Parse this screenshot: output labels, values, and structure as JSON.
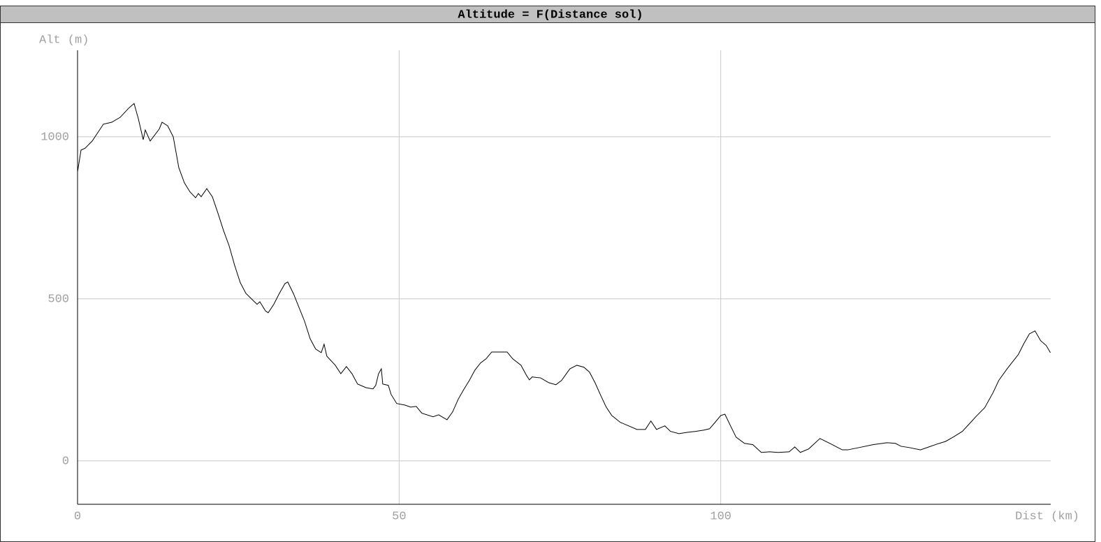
{
  "chart_data": {
    "type": "line",
    "title": "Altitude = F(Distance sol)",
    "y_label": "Alt (m)",
    "x_label": "Dist (km)",
    "xlim": [
      0,
      151.3
    ],
    "xticks": [
      0,
      50,
      100
    ],
    "ylim": [
      -134,
      1267
    ],
    "yticks": [
      0,
      500,
      1000
    ],
    "grid": true,
    "color": "#000000",
    "x": [
      0,
      0.54,
      1.19,
      2.28,
      3.15,
      4.02,
      5.32,
      6.62,
      7.93,
      8.79,
      9.45,
      10.21,
      10.53,
      11.29,
      12.7,
      13.14,
      14.01,
      14.88,
      15.74,
      16.61,
      17.48,
      18.35,
      18.78,
      19.22,
      20.09,
      20.96,
      21.82,
      22.69,
      23.56,
      24.43,
      25.3,
      26.17,
      27.04,
      27.91,
      28.34,
      29.21,
      29.64,
      30.51,
      31.38,
      32.25,
      32.68,
      33.55,
      34.42,
      35.29,
      36.16,
      37.02,
      37.89,
      38.33,
      38.76,
      40.07,
      40.93,
      41.8,
      42.67,
      43.54,
      44.84,
      45.93,
      46.36,
      46.8,
      47.23,
      47.45,
      48.32,
      48.75,
      49.62,
      50.92,
      51.79,
      52.66,
      53.53,
      55.27,
      56.14,
      57.44,
      58.31,
      59.18,
      60.04,
      60.91,
      61.78,
      62.65,
      63.52,
      64.39,
      66.78,
      67.65,
      68.95,
      69.82,
      70.25,
      70.68,
      71.99,
      73.29,
      74.37,
      75.24,
      76.55,
      77.63,
      78.72,
      79.59,
      80.46,
      81.32,
      82.19,
      83.06,
      84.37,
      85.67,
      86.97,
      88.28,
      89.14,
      90.01,
      91.31,
      92.18,
      93.49,
      94.79,
      96.09,
      97.39,
      98.26,
      99.13,
      100.0,
      100.65,
      101.52,
      102.39,
      103.69,
      104.99,
      106.3,
      107.6,
      108.9,
      110.64,
      111.51,
      112.38,
      113.68,
      115.42,
      117.15,
      118.89,
      119.76,
      121.5,
      123.67,
      125.84,
      127.15,
      128.02,
      129.32,
      131.05,
      132.36,
      133.66,
      134.96,
      136.27,
      137.57,
      138.87,
      139.74,
      141.04,
      142.35,
      143.22,
      144.52,
      145.39,
      146.26,
      147.13,
      147.99,
      148.86,
      149.73,
      150.6,
      151.25
    ],
    "values": [
      892,
      959,
      965,
      987,
      1013,
      1039,
      1045,
      1060,
      1088,
      1103,
      1056,
      991,
      1021,
      987,
      1024,
      1045,
      1034,
      1000,
      905,
      858,
      830,
      812,
      825,
      815,
      840,
      815,
      765,
      711,
      664,
      603,
      550,
      517,
      500,
      483,
      491,
      463,
      457,
      483,
      517,
      547,
      552,
      517,
      474,
      431,
      377,
      345,
      334,
      360,
      323,
      295,
      269,
      291,
      269,
      237,
      226,
      222,
      233,
      269,
      284,
      237,
      233,
      205,
      177,
      172,
      166,
      168,
      147,
      136,
      142,
      127,
      151,
      190,
      220,
      248,
      280,
      302,
      315,
      336,
      336,
      315,
      295,
      263,
      250,
      259,
      256,
      241,
      235,
      248,
      284,
      295,
      289,
      274,
      241,
      203,
      166,
      140,
      119,
      108,
      97,
      97,
      123,
      97,
      108,
      91,
      84,
      88,
      91,
      95,
      99,
      119,
      140,
      144,
      108,
      73,
      54,
      50,
      26,
      28,
      26,
      28,
      43,
      26,
      37,
      69,
      52,
      34,
      34,
      41,
      50,
      56,
      54,
      45,
      41,
      34,
      43,
      52,
      60,
      75,
      91,
      119,
      138,
      164,
      211,
      248,
      284,
      306,
      328,
      362,
      392,
      401,
      371,
      356,
      334
    ]
  }
}
